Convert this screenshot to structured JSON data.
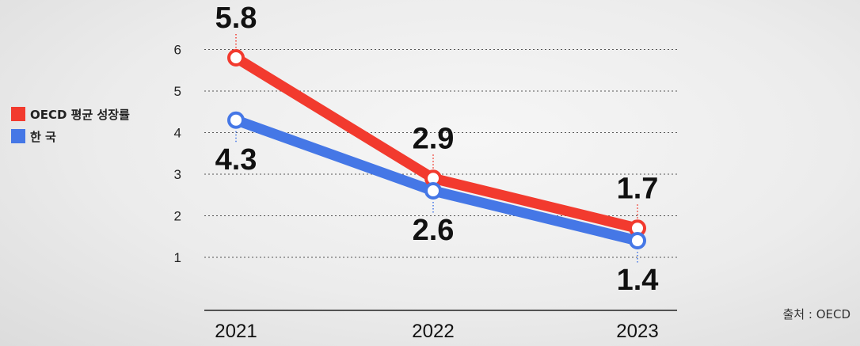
{
  "chart_data": {
    "type": "line",
    "categories": [
      "2021",
      "2022",
      "2023"
    ],
    "series": [
      {
        "name": "OECD 평균 성장률",
        "values": [
          5.8,
          2.9,
          1.7
        ],
        "labels": [
          "5.8",
          "2.9",
          "1.7"
        ],
        "color": "#f23a2e"
      },
      {
        "name": "한 국",
        "values": [
          4.3,
          2.6,
          1.4
        ],
        "labels": [
          "4.3",
          "2.6",
          "1.4"
        ],
        "color": "#4577e6"
      }
    ],
    "yticks": [
      "1",
      "2",
      "3",
      "4",
      "5",
      "6"
    ],
    "ylim": [
      0,
      6.5
    ],
    "grid": true,
    "legend_position": "left"
  },
  "source": "출처 : OECD"
}
